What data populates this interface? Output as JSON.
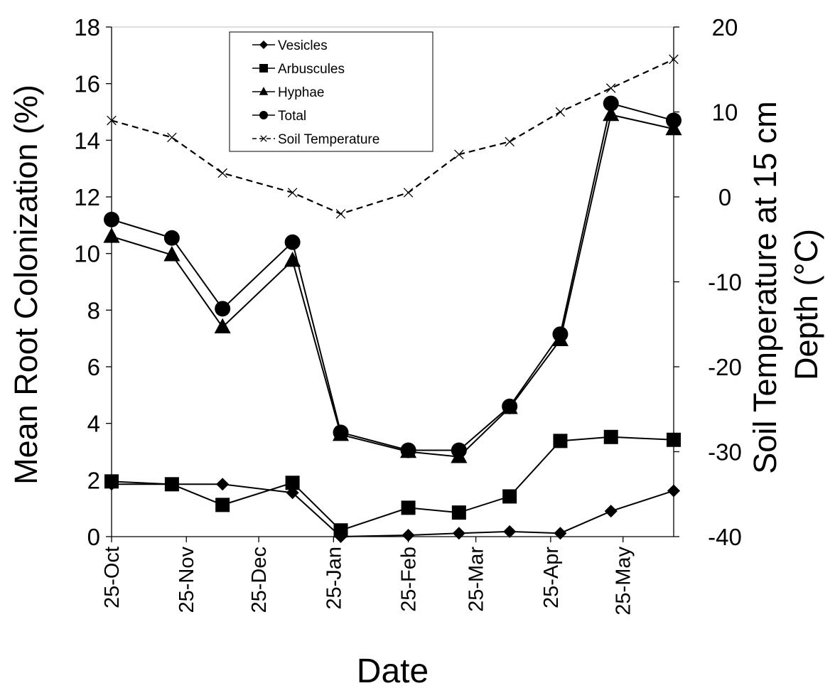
{
  "chart_data": {
    "type": "line",
    "xlabel": "Date",
    "ylabel": "Mean Root Colonization (%)",
    "y2label_line1": "Soil Temperature at 15 cm",
    "y2label_line2": "Depth (°C)",
    "ylim": [
      0,
      18
    ],
    "y2lim": [
      -40,
      20
    ],
    "yticks": [
      "0",
      "2",
      "4",
      "6",
      "8",
      "10",
      "12",
      "14",
      "16",
      "18"
    ],
    "y2ticks": [
      "-40",
      "-30",
      "-20",
      "-10",
      "0",
      "10",
      "20"
    ],
    "xtick_labels": [
      "25-Oct",
      "25-Nov",
      "25-Dec",
      "25-Jan",
      "25-Feb",
      "25-Mar",
      "25-Apr",
      "25-May"
    ],
    "xtick_days": [
      0,
      31,
      61,
      92,
      123,
      151,
      182,
      212
    ],
    "xlim_days": [
      0,
      233
    ],
    "sample_days": [
      0,
      25,
      46,
      75,
      95,
      123,
      144,
      165,
      186,
      207,
      233
    ],
    "legend_position": "top-center",
    "grid": false,
    "series": [
      {
        "name": "Vesicles",
        "marker": "diamond",
        "axis": "left",
        "style": "solid",
        "values": [
          1.85,
          1.85,
          1.85,
          1.55,
          0.0,
          0.05,
          0.12,
          0.18,
          0.12,
          0.9,
          1.62
        ]
      },
      {
        "name": "Arbuscules",
        "marker": "square",
        "axis": "left",
        "style": "solid",
        "values": [
          1.95,
          1.85,
          1.12,
          1.9,
          0.22,
          1.02,
          0.85,
          1.42,
          3.38,
          3.52,
          3.42
        ]
      },
      {
        "name": "Hyphae",
        "marker": "triangle",
        "axis": "left",
        "style": "solid",
        "values": [
          10.6,
          9.95,
          7.4,
          9.75,
          3.6,
          3.0,
          2.82,
          4.55,
          6.95,
          14.9,
          14.4
        ]
      },
      {
        "name": "Total",
        "marker": "circle",
        "axis": "left",
        "style": "solid",
        "values": [
          11.2,
          10.55,
          8.05,
          10.4,
          3.68,
          3.05,
          3.05,
          4.6,
          7.15,
          15.3,
          14.7
        ]
      },
      {
        "name": "Soil Temperature",
        "marker": "x",
        "axis": "right",
        "style": "dashed",
        "values": [
          9.0,
          7.0,
          2.8,
          0.5,
          -2.0,
          0.5,
          5.0,
          6.5,
          10.0,
          12.8,
          16.2
        ]
      }
    ]
  }
}
